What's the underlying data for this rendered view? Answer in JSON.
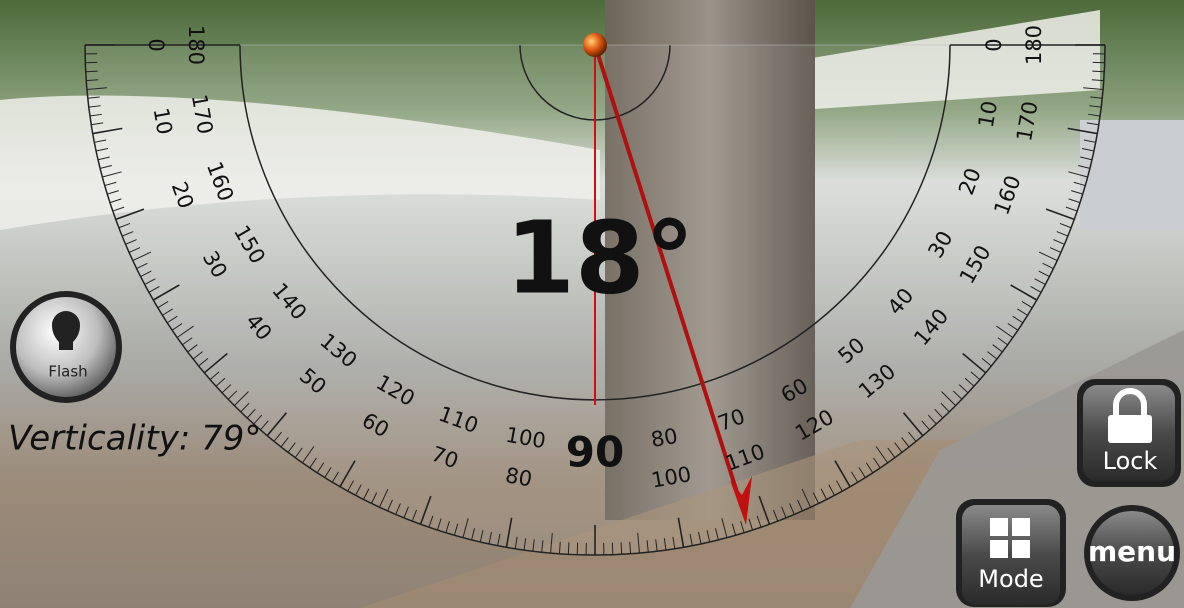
{
  "readout": "18°",
  "verticality": "Verticality: 79°",
  "buttons": {
    "flash": "Flash",
    "lock": "Lock",
    "mode": "Mode",
    "menu": "menu"
  },
  "scale": {
    "center": "90",
    "left_outer": [
      0,
      10,
      20,
      30,
      40,
      50,
      60,
      70,
      80
    ],
    "left_inner": [
      180,
      170,
      160,
      150,
      140,
      130,
      120,
      110,
      100
    ],
    "right_inner": [
      80,
      70,
      60,
      50,
      40,
      30,
      20,
      10,
      0
    ],
    "right_outer": [
      100,
      110,
      120,
      130,
      140,
      150,
      160,
      170,
      180
    ]
  }
}
